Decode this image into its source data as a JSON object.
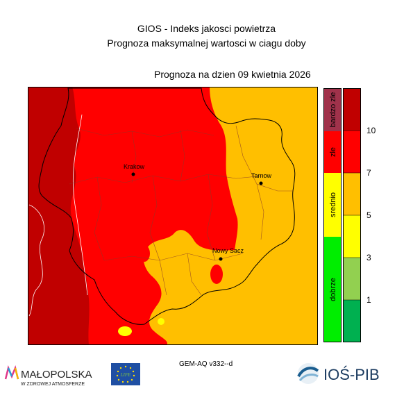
{
  "header": {
    "title": "GIOS - Indeks jakosci powietrza",
    "subtitle": "Prognoza maksymalnej wartosci w ciagu doby",
    "date_label": "Prognoza na dzien  09 kwietnia 2026"
  },
  "map": {
    "cities": [
      {
        "name": "Krakow"
      },
      {
        "name": "Tarnow"
      },
      {
        "name": "Nowy Sacz"
      }
    ]
  },
  "legend": {
    "categories": [
      "bardzo zle",
      "zle",
      "srednio",
      "dobrze"
    ],
    "category_colors": [
      "#a0324b",
      "#ff0000",
      "#ffff00",
      "#00ee00"
    ],
    "scale_values": [
      "10",
      "7",
      "5",
      "3",
      "1"
    ],
    "scale_colors": [
      "#c00000",
      "#ff0000",
      "#ffbf00",
      "#ffff00",
      "#92d050",
      "#00b050"
    ]
  },
  "footer": {
    "model": "GEM-AQ v332--d",
    "malopolska_name": "MAŁOPOLSKA",
    "malopolska_tagline": "W ZDROWEJ ATMOSFERZE",
    "eu_label": "LIFE",
    "ios_name": "IOŚ-PIB"
  }
}
